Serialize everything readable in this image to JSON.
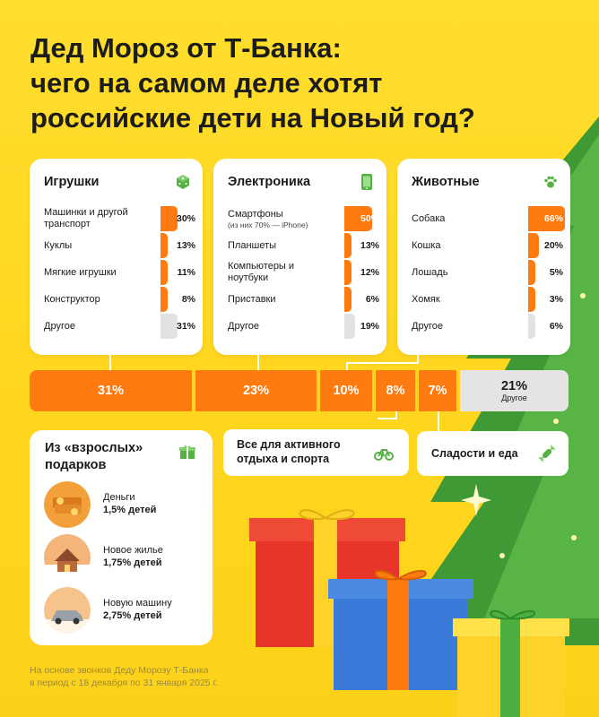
{
  "title": {
    "line1": "Дед Мороз от Т-Банка:",
    "line2": "чего на самом деле хотят",
    "line3": "российские дети на Новый год?"
  },
  "categories": [
    {
      "title": "Игрушки",
      "icon": "dice-icon",
      "items": [
        {
          "label": "Машинки и другой транспорт",
          "value": "30%",
          "share": 30
        },
        {
          "label": "Куклы",
          "value": "13%",
          "share": 13
        },
        {
          "label": "Мягкие игрушки",
          "value": "11%",
          "share": 11
        },
        {
          "label": "Конструктор",
          "value": "8%",
          "share": 8
        },
        {
          "label": "Другое",
          "value": "31%",
          "share": 31
        }
      ]
    },
    {
      "title": "Электроника",
      "icon": "phone-icon",
      "items": [
        {
          "label": "Смартфоны",
          "sublabel": "(из них 70% — iPhone)",
          "value": "50%",
          "share": 50
        },
        {
          "label": "Планшеты",
          "value": "13%",
          "share": 13
        },
        {
          "label": "Компьютеры и ноутбуки",
          "value": "12%",
          "share": 12
        },
        {
          "label": "Приставки",
          "value": "6%",
          "share": 6
        },
        {
          "label": "Другое",
          "value": "19%",
          "share": 19
        }
      ]
    },
    {
      "title": "Животные",
      "icon": "paw-icon",
      "items": [
        {
          "label": "Собака",
          "value": "66%",
          "share": 66
        },
        {
          "label": "Кошка",
          "value": "20%",
          "share": 20
        },
        {
          "label": "Лошадь",
          "value": "5%",
          "share": 5
        },
        {
          "label": "Хомяк",
          "value": "3%",
          "share": 3
        },
        {
          "label": "Другое",
          "value": "6%",
          "share": 6
        }
      ]
    }
  ],
  "shares": [
    {
      "value": "31%",
      "share": 31
    },
    {
      "value": "23%",
      "share": 23
    },
    {
      "value": "10%",
      "share": 10
    },
    {
      "value": "8%",
      "share": 8
    },
    {
      "value": "7%",
      "share": 7
    }
  ],
  "other_share": {
    "value": "21%",
    "label": "Другое",
    "share": 21
  },
  "sport": {
    "label": "Все для активного отдыха и спорта",
    "icon": "bicycle-icon"
  },
  "sweets": {
    "label": "Сладости и еда",
    "icon": "candy-icon"
  },
  "adult": {
    "title": "Из «взрослых» подарков",
    "icon": "gift-icon",
    "items": [
      {
        "name": "Деньги",
        "value": "1,5% детей",
        "icon": "money-image"
      },
      {
        "name": "Новое жилье",
        "value": "1,75% детей",
        "icon": "house-image"
      },
      {
        "name": "Новую машину",
        "value": "2,75% детей",
        "icon": "car-image"
      }
    ]
  },
  "footnote": {
    "line1": "На основе звонков Деду Морозу Т-Банка",
    "line2": "в период с 18 декабря по 31 января 2025 г."
  },
  "colors": {
    "background": "#ffd61f",
    "accent": "#ff7b10",
    "other": "#e2e2e2",
    "footnote": "#9a8a43"
  }
}
